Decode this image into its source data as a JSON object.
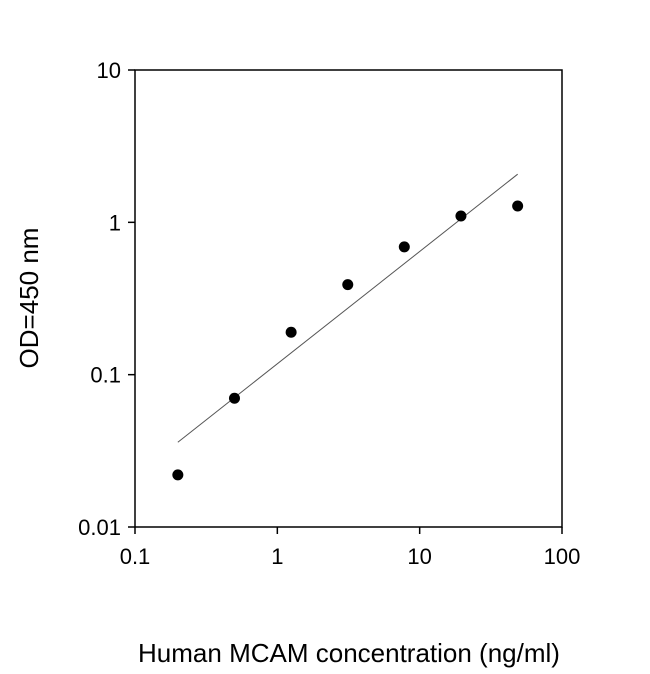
{
  "chart_data": {
    "type": "scatter",
    "title": "",
    "xlabel": "Human MCAM concentration (ng/ml)",
    "ylabel": "OD=450 nm",
    "xscale": "log",
    "yscale": "log",
    "xlim": [
      0.1,
      100
    ],
    "ylim": [
      0.01,
      10
    ],
    "xticks": [
      "0.1",
      "1",
      "10",
      "100"
    ],
    "yticks": [
      "0.01",
      "0.1",
      "1",
      "10"
    ],
    "grid": false,
    "x": [
      0.2,
      0.5,
      1.25,
      3.125,
      7.8,
      19.5,
      48.8
    ],
    "y": [
      0.022,
      0.07,
      0.19,
      0.39,
      0.69,
      1.1,
      1.28
    ],
    "fit_line": {
      "x": [
        0.2,
        48.8
      ],
      "y": [
        0.036,
        2.07
      ]
    },
    "marker_color": "#000000",
    "line_color": "#555555"
  }
}
